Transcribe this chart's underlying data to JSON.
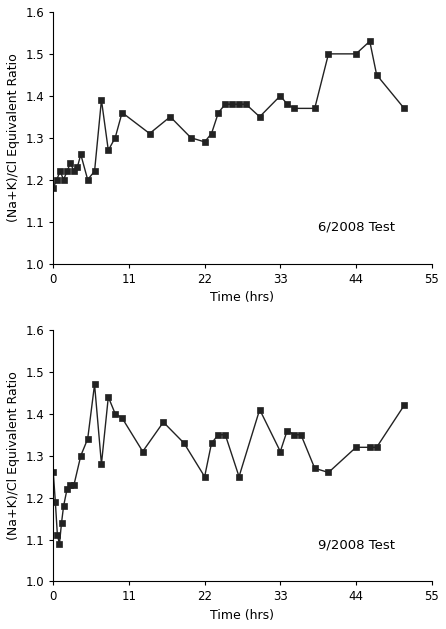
{
  "june_time": [
    0,
    0.5,
    1,
    1.5,
    2,
    2.5,
    3,
    3.5,
    4,
    5,
    6,
    7,
    8,
    9,
    10,
    14,
    17,
    20,
    22,
    23,
    24,
    25,
    26,
    27,
    28,
    30,
    33,
    34,
    35,
    38,
    40,
    44,
    46,
    47,
    51
  ],
  "june_vals": [
    1.18,
    1.2,
    1.22,
    1.2,
    1.22,
    1.24,
    1.22,
    1.23,
    1.26,
    1.2,
    1.22,
    1.39,
    1.27,
    1.3,
    1.36,
    1.31,
    1.35,
    1.3,
    1.29,
    1.31,
    1.36,
    1.38,
    1.38,
    1.38,
    1.38,
    1.35,
    1.4,
    1.38,
    1.37,
    1.37,
    1.5,
    1.5,
    1.53,
    1.45,
    1.37
  ],
  "sept_time": [
    0,
    0.3,
    0.6,
    0.9,
    1.2,
    1.5,
    2,
    2.5,
    3,
    4,
    5,
    6,
    7,
    8,
    9,
    10,
    13,
    16,
    19,
    22,
    23,
    24,
    25,
    27,
    30,
    33,
    34,
    35,
    36,
    38,
    40,
    44,
    46,
    47,
    51
  ],
  "sept_vals": [
    1.26,
    1.19,
    1.11,
    1.09,
    1.14,
    1.18,
    1.22,
    1.23,
    1.23,
    1.3,
    1.34,
    1.47,
    1.28,
    1.44,
    1.4,
    1.39,
    1.31,
    1.38,
    1.33,
    1.25,
    1.33,
    1.35,
    1.35,
    1.25,
    1.41,
    1.31,
    1.36,
    1.35,
    1.35,
    1.27,
    1.26,
    1.32,
    1.32,
    1.32,
    1.42
  ],
  "ylabel": "(Na+K)/Cl Equivalent Ratio",
  "xlabel": "Time (hrs)",
  "june_label": "6/2008 Test",
  "sept_label": "9/2008 Test",
  "xlim": [
    0,
    55
  ],
  "ylim": [
    1.0,
    1.6
  ],
  "xticks": [
    0,
    11,
    22,
    33,
    44,
    55
  ],
  "yticks": [
    1.0,
    1.1,
    1.2,
    1.3,
    1.4,
    1.5,
    1.6
  ],
  "marker": "s",
  "markersize": 4,
  "linewidth": 1.0,
  "color": "#222222",
  "label_fontsize": 9,
  "tick_fontsize": 8.5,
  "annotation_fontsize": 9.5
}
